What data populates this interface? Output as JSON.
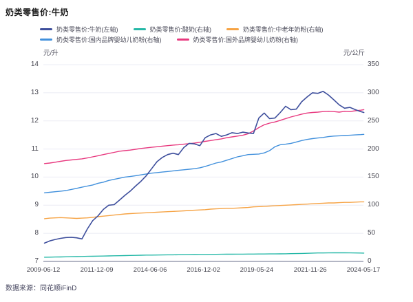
{
  "footer": {
    "source": "数据来源：同花顺iFinD"
  },
  "chart_data": {
    "type": "line",
    "title": "奶类零售价:牛奶",
    "grid": "horizontal",
    "legend_position": "top",
    "left_axis": {
      "unit": "元/升",
      "min": 7,
      "max": 14,
      "ticks": [
        14,
        13,
        12,
        11,
        10,
        9,
        8,
        7
      ]
    },
    "right_axis": {
      "unit": "元/公斤",
      "min": 0,
      "max": 350,
      "ticks": [
        350,
        300,
        250,
        200,
        150,
        100,
        50,
        0
      ]
    },
    "x_range": [
      2009.45,
      2024.38
    ],
    "x_ticks": [
      {
        "label": "2009-06-12",
        "x": 2009.45
      },
      {
        "label": "2011-12-09",
        "x": 2011.94
      },
      {
        "label": "2014-06-06",
        "x": 2014.43
      },
      {
        "label": "2016-12-02",
        "x": 2016.92
      },
      {
        "label": "2019-05-24",
        "x": 2019.4
      },
      {
        "label": "2021-11-26",
        "x": 2021.9
      },
      {
        "label": "2024-05-17",
        "x": 2024.38
      }
    ],
    "x": [
      2009.5,
      2009.75,
      2010,
      2010.25,
      2010.5,
      2010.75,
      2011,
      2011.25,
      2011.5,
      2011.75,
      2012,
      2012.25,
      2012.5,
      2012.75,
      2013,
      2013.25,
      2013.5,
      2013.75,
      2014,
      2014.25,
      2014.5,
      2014.75,
      2015,
      2015.25,
      2015.5,
      2015.75,
      2016,
      2016.25,
      2016.5,
      2016.75,
      2017,
      2017.25,
      2017.5,
      2017.75,
      2018,
      2018.25,
      2018.5,
      2018.75,
      2019,
      2019.25,
      2019.5,
      2019.75,
      2020,
      2020.25,
      2020.5,
      2020.75,
      2021,
      2021.25,
      2021.5,
      2021.75,
      2022,
      2022.25,
      2022.5,
      2022.75,
      2023,
      2023.25,
      2023.5,
      2023.75,
      2024,
      2024.25,
      2024.4
    ],
    "legend_rows": [
      [
        0,
        1,
        2
      ],
      [
        3,
        4
      ]
    ],
    "series": [
      {
        "name": "奶类零售价:牛奶(左轴)",
        "axis": "left",
        "color": "#3d4e9c",
        "values": [
          7.65,
          7.73,
          7.78,
          7.82,
          7.85,
          7.86,
          7.84,
          7.8,
          8.15,
          8.45,
          8.62,
          8.85,
          9.0,
          9.02,
          9.18,
          9.35,
          9.5,
          9.68,
          9.85,
          10.05,
          10.3,
          10.55,
          10.7,
          10.8,
          10.85,
          10.8,
          11.05,
          11.2,
          11.18,
          11.12,
          11.4,
          11.5,
          11.55,
          11.45,
          11.5,
          11.58,
          11.55,
          11.6,
          11.57,
          11.55,
          12.1,
          12.28,
          12.08,
          12.1,
          12.3,
          12.52,
          12.4,
          12.42,
          12.68,
          12.85,
          13.0,
          12.98,
          13.05,
          12.92,
          12.75,
          12.57,
          12.45,
          12.48,
          12.4,
          12.33,
          12.3
        ]
      },
      {
        "name": "奶类零售价:酸奶(右轴)",
        "axis": "right",
        "color": "#25b8a7",
        "values": [
          7.5,
          7.6,
          7.8,
          8.0,
          8.2,
          8.4,
          8.6,
          8.8,
          9.0,
          9.2,
          9.4,
          9.6,
          9.8,
          10.0,
          10.2,
          10.4,
          10.6,
          10.8,
          11.0,
          11.2,
          11.3,
          11.4,
          11.5,
          11.7,
          11.8,
          11.9,
          12.0,
          12.1,
          12.2,
          12.3,
          12.4,
          12.5,
          12.6,
          12.7,
          12.8,
          12.9,
          13.0,
          13.0,
          13.1,
          13.1,
          13.2,
          13.2,
          13.3,
          13.4,
          13.5,
          13.6,
          13.8,
          14.0,
          14.2,
          14.5,
          14.8,
          15.0,
          15.1,
          15.2,
          15.3,
          15.4,
          15.3,
          15.2,
          15.0,
          14.9,
          14.8
        ]
      },
      {
        "name": "奶类零售价:中老年奶粉(右轴)",
        "axis": "right",
        "color": "#f6a344",
        "values": [
          76,
          77,
          77.5,
          78,
          77.5,
          77,
          76.5,
          77,
          77.5,
          78.5,
          79.5,
          80.5,
          81.5,
          82.5,
          83.5,
          84.5,
          85,
          85.5,
          86,
          86.5,
          87,
          87.5,
          88,
          88.5,
          89,
          89.5,
          90,
          90.5,
          91,
          91.5,
          92,
          93,
          93.5,
          94,
          94.5,
          94.5,
          95,
          95.5,
          96,
          97,
          97.5,
          98,
          98.5,
          99,
          99.5,
          100,
          100.5,
          101,
          101.5,
          102,
          102.5,
          103,
          103.5,
          104,
          104,
          104.5,
          105,
          105,
          105.5,
          106,
          106
        ]
      },
      {
        "name": "奶类零售价:国内品牌婴幼儿奶粉(右轴)",
        "axis": "right",
        "color": "#4190dc",
        "values": [
          122,
          123,
          124,
          125,
          126,
          128,
          130,
          132,
          134,
          136,
          139,
          141,
          144,
          146,
          148,
          150,
          151,
          152.5,
          154,
          155.5,
          157,
          158,
          159,
          160,
          161,
          162,
          163,
          164,
          165,
          166.5,
          169,
          172,
          175,
          177,
          180,
          183,
          186,
          188,
          190,
          190.5,
          191,
          193,
          197,
          204,
          207.5,
          208.5,
          210,
          212.5,
          215,
          217,
          218.5,
          219.5,
          220.5,
          222,
          223,
          223.5,
          224,
          224.5,
          225,
          225.5,
          226
        ]
      },
      {
        "name": "奶类零售价:国外品牌婴幼儿奶粉(右轴)",
        "axis": "right",
        "color": "#e8397f",
        "values": [
          174,
          175,
          176.5,
          178,
          179.5,
          180.5,
          181.5,
          182.5,
          184,
          186,
          188,
          190,
          192,
          194,
          196,
          197,
          198,
          199.5,
          201,
          202,
          203,
          204,
          205,
          206,
          207,
          207.5,
          208.5,
          209.5,
          210.5,
          212,
          213.5,
          215,
          216.5,
          218,
          220,
          221.5,
          223,
          224.5,
          227,
          232,
          238,
          243,
          246,
          248,
          251,
          254,
          257,
          259.5,
          262,
          264,
          265,
          265.5,
          266.5,
          267,
          266.5,
          265.5,
          267,
          266.5,
          268,
          269,
          270
        ]
      }
    ]
  }
}
